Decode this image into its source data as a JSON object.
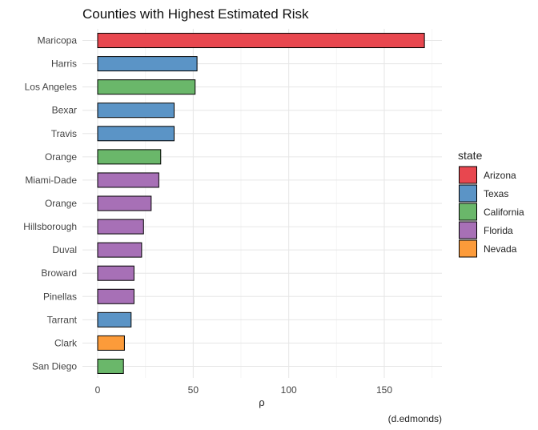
{
  "chart_data": {
    "type": "bar",
    "orientation": "horizontal",
    "title": "Counties with Highest Estimated Risk",
    "xlabel": "ρ",
    "ylabel": "",
    "caption": "(d.edmonds)",
    "xlim": [
      -5,
      178
    ],
    "xticks": [
      0,
      50,
      100,
      150
    ],
    "grid": true,
    "legend": {
      "title": "state",
      "placement": "right",
      "entries": [
        {
          "name": "Arizona",
          "color": "#E8474F"
        },
        {
          "name": "Texas",
          "color": "#5B94C6"
        },
        {
          "name": "California",
          "color": "#6AB76A"
        },
        {
          "name": "Florida",
          "color": "#A770B6"
        },
        {
          "name": "Nevada",
          "color": "#FC9B3A"
        }
      ]
    },
    "categories": [
      "Maricopa",
      "Harris",
      "Los Angeles",
      "Bexar",
      "Travis",
      "Orange",
      "Miami-Dade",
      "Orange",
      "Hillsborough",
      "Duval",
      "Broward",
      "Pinellas",
      "Tarrant",
      "Clark",
      "San Diego"
    ],
    "values": [
      171,
      52,
      51,
      40,
      40,
      33,
      32,
      28,
      24,
      23,
      19,
      19,
      17.5,
      14,
      13.5
    ],
    "groups": [
      "Arizona",
      "Texas",
      "California",
      "Texas",
      "Texas",
      "California",
      "Florida",
      "Florida",
      "Florida",
      "Florida",
      "Florida",
      "Florida",
      "Texas",
      "Nevada",
      "California"
    ]
  }
}
